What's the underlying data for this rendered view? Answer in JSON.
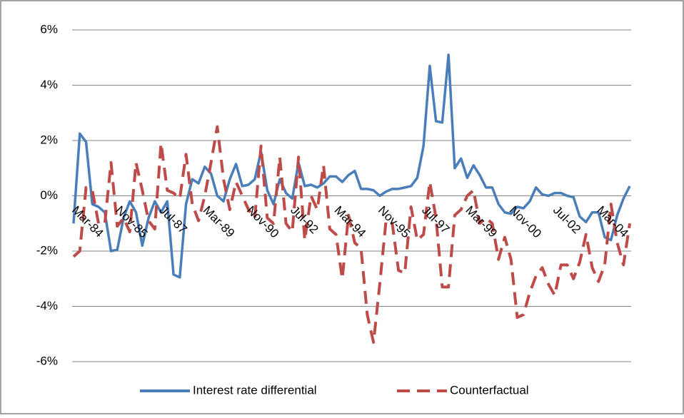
{
  "chart_data": {
    "type": "line",
    "categories": [
      "Mar-84",
      null,
      null,
      null,
      null,
      null,
      null,
      "Nov-85",
      null,
      null,
      null,
      null,
      null,
      null,
      "Jul-87",
      null,
      null,
      null,
      null,
      null,
      null,
      "Mar-89",
      null,
      null,
      null,
      null,
      null,
      null,
      "Nov-90",
      null,
      null,
      null,
      null,
      null,
      null,
      "Jul-92",
      null,
      null,
      null,
      null,
      null,
      null,
      "Mar-94",
      null,
      null,
      null,
      null,
      null,
      null,
      "Nov-95",
      null,
      null,
      null,
      null,
      null,
      null,
      "Jul-97",
      null,
      null,
      null,
      null,
      null,
      null,
      "Mar-99",
      null,
      null,
      null,
      null,
      null,
      null,
      "Nov-00",
      null,
      null,
      null,
      null,
      null,
      null,
      "Jul-02",
      null,
      null,
      null,
      null,
      null,
      null,
      "Mar-04",
      null,
      null,
      null,
      null,
      null
    ],
    "series": [
      {
        "name": "Interest rate differential",
        "color": "#4a7ebb",
        "dash": false,
        "values": [
          -1.0,
          2.25,
          1.95,
          -0.3,
          -0.4,
          -0.6,
          -2.0,
          -1.95,
          -0.8,
          -0.2,
          -0.6,
          -1.8,
          -0.8,
          -0.2,
          -0.6,
          -0.2,
          -2.85,
          -2.95,
          -0.3,
          0.6,
          0.45,
          1.05,
          0.8,
          0.0,
          -0.2,
          0.6,
          1.15,
          0.35,
          0.4,
          0.6,
          1.6,
          0.2,
          -0.3,
          0.6,
          0.1,
          -0.1,
          1.2,
          0.35,
          0.4,
          0.3,
          0.45,
          0.7,
          0.7,
          0.5,
          0.75,
          0.9,
          0.25,
          0.25,
          0.2,
          0.0,
          0.15,
          0.25,
          0.25,
          0.3,
          0.35,
          0.65,
          1.8,
          4.7,
          2.7,
          2.65,
          5.1,
          1.0,
          1.35,
          0.65,
          1.1,
          0.75,
          0.3,
          0.3,
          -0.3,
          -0.6,
          -0.65,
          -0.4,
          -0.45,
          -0.2,
          0.3,
          0.05,
          0.0,
          0.1,
          0.1,
          0.0,
          -0.05,
          -0.75,
          -0.95,
          -0.6,
          -0.6,
          -1.5,
          -1.6,
          -0.7,
          -0.1,
          0.35
        ]
      },
      {
        "name": "Counterfactual",
        "color": "#be4b48",
        "dash": true,
        "values": [
          -2.2,
          -2.0,
          0.3,
          0.2,
          -1.0,
          -1.0,
          1.2,
          -1.1,
          -0.8,
          -1.3,
          1.2,
          0.2,
          -0.9,
          -1.2,
          1.9,
          0.2,
          0.1,
          -0.1,
          1.5,
          -0.3,
          -0.9,
          0.0,
          1.2,
          2.5,
          0.6,
          -0.5,
          0.5,
          0.0,
          -0.5,
          -0.8,
          1.8,
          -0.8,
          -1.0,
          1.4,
          -1.0,
          -1.3,
          1.4,
          -1.6,
          0.0,
          -0.5,
          1.1,
          -1.2,
          -1.4,
          -3.0,
          -0.7,
          -1.7,
          -1.9,
          -4.3,
          -5.3,
          -3.2,
          -0.9,
          -1.0,
          -2.7,
          -2.8,
          -0.4,
          -1.6,
          -1.4,
          0.5,
          -0.8,
          -3.3,
          -3.3,
          -0.7,
          -0.5,
          0.0,
          0.2,
          -1.0,
          -0.8,
          -1.0,
          -2.3,
          -1.5,
          -2.3,
          -4.4,
          -4.3,
          -3.5,
          -2.9,
          -2.6,
          -3.2,
          -3.6,
          -2.5,
          -2.5,
          -3.0,
          -2.4,
          -1.4,
          -2.6,
          -3.1,
          -2.5,
          -0.3,
          -1.7,
          -2.5,
          -1.0
        ]
      }
    ],
    "ylim": [
      -6,
      6
    ],
    "yticks": [
      {
        "value": -6,
        "label": "-6%"
      },
      {
        "value": -4,
        "label": "-4%"
      },
      {
        "value": -2,
        "label": "-2%"
      },
      {
        "value": 0,
        "label": "0%"
      },
      {
        "value": 2,
        "label": "2%"
      },
      {
        "value": 4,
        "label": "4%"
      },
      {
        "value": 6,
        "label": "6%"
      }
    ],
    "grid": true,
    "legend": "bottom"
  }
}
